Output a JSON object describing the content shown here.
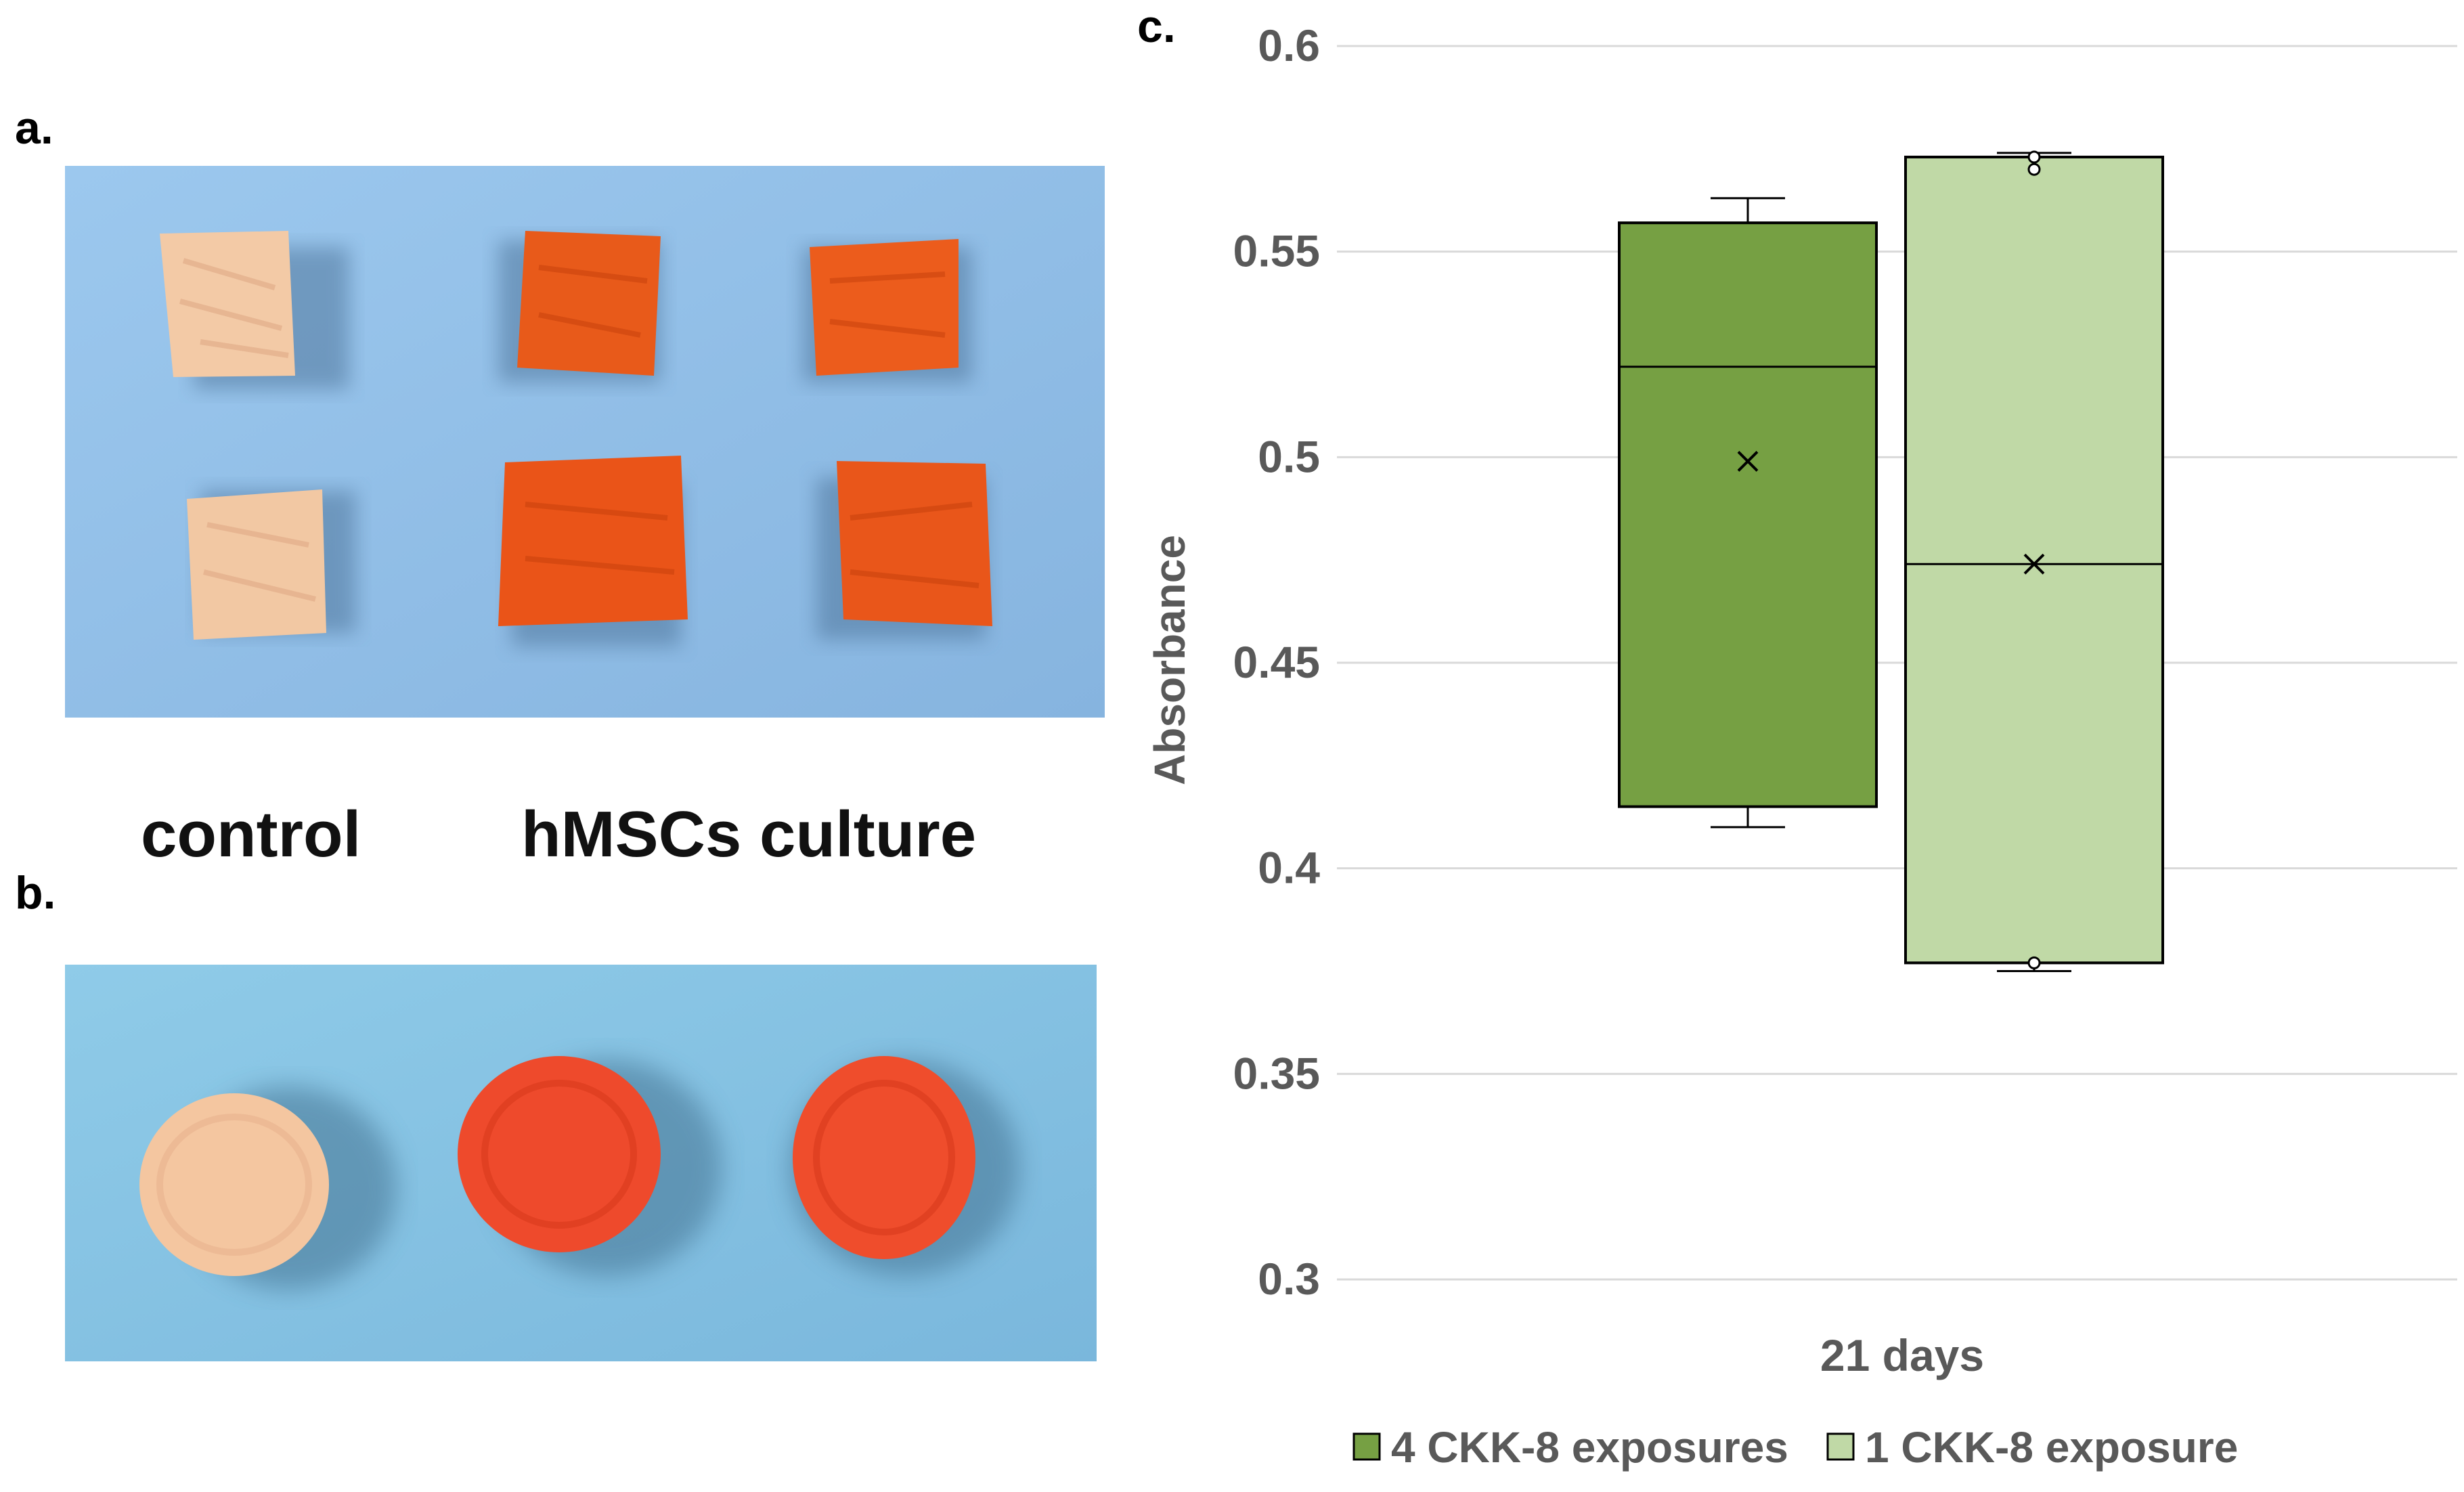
{
  "panels": {
    "a": {
      "letter": "a."
    },
    "b": {
      "letter": "b."
    },
    "c": {
      "letter": "c."
    }
  },
  "photo_labels": {
    "control": "control",
    "culture": "hMSCs culture"
  },
  "colors": {
    "background_blue": "#8fbde6",
    "control_sample": "#f2c9a8",
    "stained_sample": "#e8551c",
    "series_dark": "#76a043",
    "series_light": "#c0d9a6",
    "gridline": "#d9d9d9",
    "axis_text": "#595959"
  },
  "chart_data": {
    "type": "box",
    "title": "",
    "xlabel": "",
    "ylabel": "Absorbance",
    "ylim": [
      0.3,
      0.6
    ],
    "yticks": [
      0.3,
      0.35,
      0.4,
      0.45,
      0.5,
      0.55,
      0.6
    ],
    "ytick_labels": [
      "0.3",
      "0.35",
      "0.4",
      "0.45",
      "0.5",
      "0.55",
      "0.6"
    ],
    "grid": true,
    "categories": [
      "21 days"
    ],
    "legend_position": "bottom",
    "series": [
      {
        "name": "4 CKK-8 exposures",
        "color": "#76a043",
        "min": 0.41,
        "q1": 0.415,
        "median": 0.522,
        "q3": 0.557,
        "max": 0.563,
        "mean": 0.499,
        "outliers": []
      },
      {
        "name": "1 CKK-8 exposure",
        "color": "#c0d9a6",
        "min": 0.375,
        "q1": 0.377,
        "median": 0.474,
        "q3": 0.573,
        "max": 0.574,
        "mean": 0.474,
        "outliers": [
          0.377,
          0.57,
          0.573
        ]
      }
    ]
  }
}
